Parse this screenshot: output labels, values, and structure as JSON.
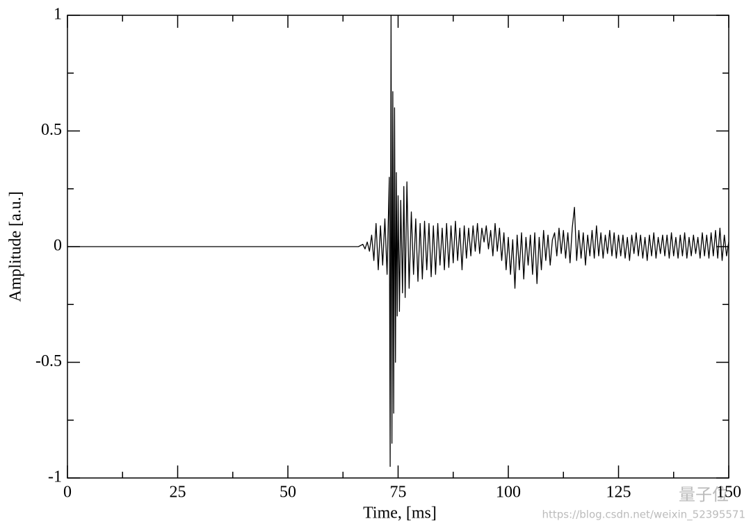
{
  "chart_data": {
    "type": "line",
    "xlabel": "Time, [ms]",
    "ylabel": "Amplitude [a.u.]",
    "watermark_text": "量子位",
    "watermark_url": "https://blog.csdn.net/weixin_52395571",
    "xlim": [
      0,
      150
    ],
    "xticks": [
      0,
      25,
      50,
      75,
      100,
      125,
      150
    ],
    "xminorticks": [
      12.5,
      37.5,
      62.5,
      87.5,
      112.5,
      137.5
    ],
    "ylim": [
      -1,
      1
    ],
    "yticks": [
      -1,
      -0.5,
      0,
      0.5,
      1
    ],
    "yminorticks": [
      -0.75,
      -0.25,
      0.25,
      0.75
    ],
    "grid": false,
    "color": "#000000",
    "x": [
      0,
      6,
      12,
      18,
      24,
      30,
      36,
      42,
      48,
      54,
      60,
      66,
      67,
      67.5,
      68,
      68.5,
      69,
      69.5,
      70,
      70.5,
      71,
      71.5,
      72,
      72.5,
      73,
      73.2,
      73.4,
      73.6,
      73.8,
      74,
      74.2,
      74.4,
      74.6,
      74.8,
      75,
      75.3,
      75.6,
      76,
      76.3,
      76.6,
      77,
      77.5,
      78,
      78.5,
      79,
      79.5,
      80,
      80.5,
      81,
      81.5,
      82,
      82.5,
      83,
      83.5,
      84,
      84.5,
      85,
      85.5,
      86,
      86.5,
      87,
      87.5,
      88,
      88.5,
      89,
      89.5,
      90,
      90.5,
      91,
      91.5,
      92,
      92.5,
      93,
      93.5,
      94,
      94.5,
      95,
      95.5,
      96,
      96.5,
      97,
      97.5,
      98,
      98.5,
      99,
      99.5,
      100,
      100.5,
      101,
      101.5,
      102,
      102.5,
      103,
      103.5,
      104,
      104.5,
      105,
      105.5,
      106,
      106.5,
      107,
      107.5,
      108,
      108.5,
      109,
      109.5,
      110,
      110.5,
      111,
      111.5,
      112,
      112.5,
      113,
      113.5,
      114,
      114.5,
      115,
      115.5,
      116,
      116.5,
      117,
      117.5,
      118,
      118.5,
      119,
      119.5,
      120,
      120.5,
      121,
      121.5,
      122,
      122.5,
      123,
      123.5,
      124,
      124.5,
      125,
      125.5,
      126,
      126.5,
      127,
      127.5,
      128,
      128.5,
      129,
      129.5,
      130,
      130.5,
      131,
      131.5,
      132,
      132.5,
      133,
      133.5,
      134,
      134.5,
      135,
      135.5,
      136,
      136.5,
      137,
      137.5,
      138,
      138.5,
      139,
      139.5,
      140,
      140.5,
      141,
      141.5,
      142,
      142.5,
      143,
      143.5,
      144,
      144.5,
      145,
      145.5,
      146,
      146.5,
      147,
      147.5,
      148,
      148.5,
      149,
      149.5,
      150
    ],
    "values": [
      0,
      0,
      0,
      0,
      0,
      0,
      0,
      0,
      0,
      0,
      0,
      0,
      0.01,
      -0.01,
      0.02,
      -0.02,
      0.05,
      -0.06,
      0.1,
      -0.1,
      0.09,
      -0.08,
      0.12,
      -0.12,
      0.3,
      -0.95,
      1.0,
      -0.85,
      0.67,
      -0.72,
      0.6,
      -0.5,
      0.32,
      -0.3,
      0.22,
      -0.28,
      0.2,
      -0.2,
      0.26,
      -0.22,
      0.28,
      -0.18,
      0.15,
      -0.12,
      0.12,
      -0.15,
      0.1,
      -0.14,
      0.11,
      -0.1,
      0.1,
      -0.13,
      0.09,
      -0.12,
      0.1,
      -0.08,
      0.08,
      -0.1,
      0.1,
      -0.09,
      0.09,
      -0.07,
      0.11,
      -0.06,
      0.08,
      -0.1,
      0.09,
      -0.05,
      0.08,
      -0.04,
      0.09,
      -0.02,
      0.1,
      -0.03,
      0.08,
      0.02,
      0.09,
      -0.01,
      0.07,
      -0.04,
      0.1,
      -0.02,
      0.08,
      -0.06,
      0.06,
      -0.1,
      0.04,
      -0.12,
      0.03,
      -0.18,
      0.05,
      -0.1,
      0.06,
      -0.14,
      0.04,
      -0.08,
      0.05,
      -0.12,
      0.06,
      -0.16,
      0.04,
      -0.1,
      0.07,
      -0.06,
      0.05,
      -0.08,
      0.03,
      0.06,
      -0.04,
      0.08,
      -0.03,
      0.07,
      -0.05,
      0.06,
      -0.07,
      0.08,
      0.17,
      -0.06,
      0.07,
      -0.05,
      0.06,
      -0.08,
      0.05,
      -0.04,
      0.07,
      -0.05,
      0.09,
      -0.04,
      0.06,
      -0.05,
      0.05,
      -0.03,
      0.07,
      -0.04,
      0.06,
      -0.05,
      0.05,
      -0.04,
      0.05,
      -0.05,
      0.04,
      -0.06,
      0.05,
      -0.03,
      0.06,
      -0.04,
      0.05,
      -0.05,
      0.04,
      -0.06,
      0.05,
      -0.04,
      0.06,
      -0.05,
      0.04,
      -0.03,
      0.05,
      -0.04,
      0.05,
      -0.05,
      0.06,
      -0.04,
      0.04,
      -0.05,
      0.05,
      -0.04,
      0.06,
      -0.05,
      0.04,
      -0.04,
      0.05,
      -0.03,
      0.04,
      -0.05,
      0.06,
      -0.04,
      0.05,
      -0.05,
      0.06,
      -0.04,
      0.07,
      -0.05,
      0.08,
      -0.06,
      0.05,
      -0.04,
      0.02
    ]
  }
}
